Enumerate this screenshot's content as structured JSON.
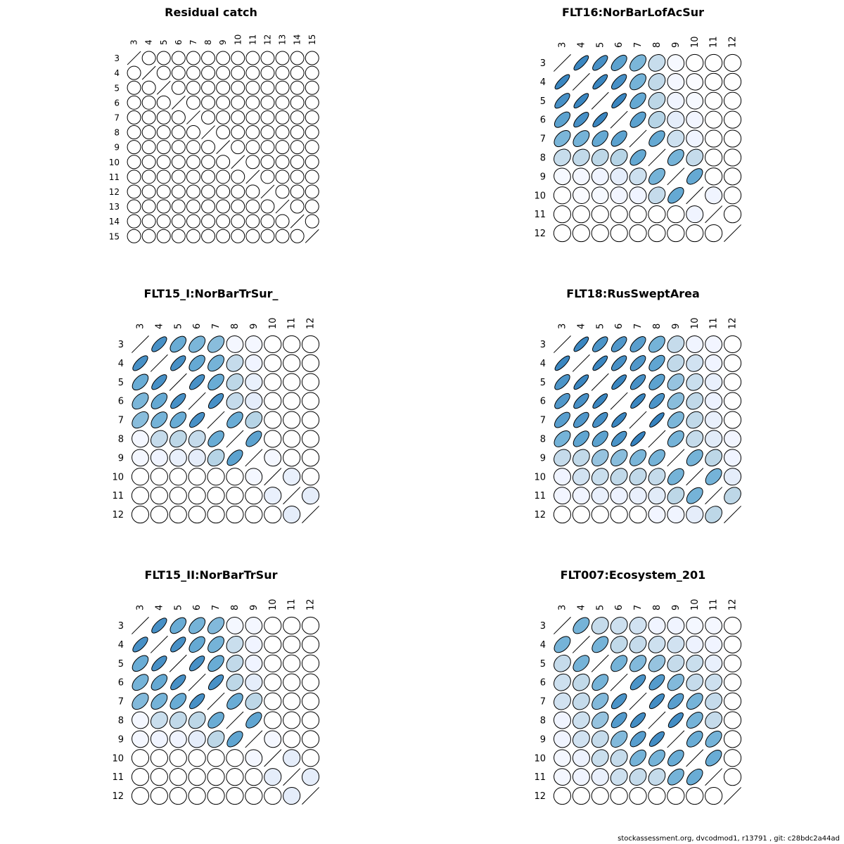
{
  "footer": "stockassessment.org, dvcodmod1, r13791 , git: c28bdc2a44ad",
  "chart_data": [
    {
      "type": "heatmap",
      "title": "Residual catch",
      "ages": [
        3,
        4,
        5,
        6,
        7,
        8,
        9,
        10,
        11,
        12,
        13,
        14,
        15
      ],
      "matrix": [
        [
          1,
          0,
          0,
          0,
          0,
          0,
          0,
          0,
          0,
          0,
          0,
          0,
          0
        ],
        [
          0,
          1,
          0,
          0,
          0,
          0,
          0,
          0,
          0,
          0,
          0,
          0,
          0
        ],
        [
          0,
          0,
          1,
          0,
          0,
          0,
          0,
          0,
          0,
          0,
          0,
          0,
          0
        ],
        [
          0,
          0,
          0,
          1,
          0,
          0,
          0,
          0,
          0,
          0,
          0,
          0,
          0
        ],
        [
          0,
          0,
          0,
          0,
          1,
          0,
          0,
          0,
          0,
          0,
          0,
          0,
          0
        ],
        [
          0,
          0,
          0,
          0,
          0,
          1,
          0,
          0,
          0,
          0,
          0,
          0,
          0
        ],
        [
          0,
          0,
          0,
          0,
          0,
          0,
          1,
          0,
          0,
          0,
          0,
          0,
          0
        ],
        [
          0,
          0,
          0,
          0,
          0,
          0,
          0,
          1,
          0,
          0,
          0,
          0,
          0
        ],
        [
          0,
          0,
          0,
          0,
          0,
          0,
          0,
          0,
          1,
          0,
          0,
          0,
          0
        ],
        [
          0,
          0,
          0,
          0,
          0,
          0,
          0,
          0,
          0,
          1,
          0,
          0,
          0
        ],
        [
          0,
          0,
          0,
          0,
          0,
          0,
          0,
          0,
          0,
          0,
          1,
          0,
          0
        ],
        [
          0,
          0,
          0,
          0,
          0,
          0,
          0,
          0,
          0,
          0,
          0,
          1,
          0
        ],
        [
          0,
          0,
          0,
          0,
          0,
          0,
          0,
          0,
          0,
          0,
          0,
          0,
          1
        ]
      ]
    },
    {
      "type": "heatmap",
      "title": "FLT16:NorBarLofAcSur",
      "ages": [
        3,
        4,
        5,
        6,
        7,
        8,
        9,
        10,
        11,
        12
      ],
      "matrix": [
        [
          1,
          0.88,
          0.82,
          0.72,
          0.6,
          0.35,
          0.08,
          0,
          0,
          0
        ],
        [
          0.88,
          1,
          0.88,
          0.82,
          0.62,
          0.38,
          0.1,
          0.05,
          0,
          0
        ],
        [
          0.82,
          0.88,
          1,
          0.88,
          0.68,
          0.4,
          0.14,
          0.08,
          0,
          0
        ],
        [
          0.72,
          0.82,
          0.88,
          1,
          0.72,
          0.42,
          0.2,
          0.12,
          0,
          0
        ],
        [
          0.6,
          0.62,
          0.68,
          0.72,
          1,
          0.68,
          0.32,
          0.14,
          0,
          0
        ],
        [
          0.35,
          0.38,
          0.4,
          0.42,
          0.68,
          1,
          0.62,
          0.36,
          0,
          0
        ],
        [
          0.08,
          0.1,
          0.14,
          0.2,
          0.32,
          0.62,
          1,
          0.68,
          0,
          0
        ],
        [
          0,
          0.05,
          0.08,
          0.12,
          0.14,
          0.36,
          0.68,
          1,
          0.14,
          0
        ],
        [
          0,
          0,
          0,
          0,
          0,
          0,
          0,
          0.14,
          1,
          0
        ],
        [
          0,
          0,
          0,
          0,
          0,
          0,
          0,
          0,
          0,
          1
        ]
      ]
    },
    {
      "type": "heatmap",
      "title": "FLT15_I:NorBarTrSur_",
      "ages": [
        3,
        4,
        5,
        6,
        7,
        8,
        9,
        10,
        11,
        12
      ],
      "matrix": [
        [
          1,
          0.82,
          0.66,
          0.6,
          0.56,
          0.1,
          0.1,
          0,
          0,
          0
        ],
        [
          0.82,
          1,
          0.82,
          0.68,
          0.62,
          0.36,
          0.14,
          0,
          0,
          0
        ],
        [
          0.66,
          0.82,
          1,
          0.82,
          0.66,
          0.4,
          0.18,
          0,
          0,
          0
        ],
        [
          0.6,
          0.68,
          0.82,
          1,
          0.82,
          0.36,
          0.2,
          0,
          0,
          0
        ],
        [
          0.56,
          0.62,
          0.66,
          0.82,
          1,
          0.66,
          0.42,
          0,
          0,
          0
        ],
        [
          0.1,
          0.36,
          0.4,
          0.36,
          0.66,
          1,
          0.72,
          0,
          0,
          0
        ],
        [
          0.1,
          0.14,
          0.18,
          0.2,
          0.42,
          0.72,
          1,
          0.1,
          0,
          0
        ],
        [
          0,
          0,
          0,
          0,
          0,
          0,
          0.1,
          1,
          0.18,
          0
        ],
        [
          0,
          0,
          0,
          0,
          0,
          0,
          0,
          0.18,
          1,
          0.2
        ],
        [
          0,
          0,
          0,
          0,
          0,
          0,
          0,
          0,
          0.2,
          1
        ]
      ]
    },
    {
      "type": "heatmap",
      "title": "FLT18:RusSweptArea",
      "ages": [
        3,
        4,
        5,
        6,
        7,
        8,
        9,
        10,
        11,
        12
      ],
      "matrix": [
        [
          1,
          0.88,
          0.8,
          0.78,
          0.74,
          0.62,
          0.36,
          0.14,
          0.12,
          0
        ],
        [
          0.88,
          1,
          0.88,
          0.82,
          0.78,
          0.7,
          0.38,
          0.3,
          0.14,
          0
        ],
        [
          0.8,
          0.88,
          1,
          0.88,
          0.82,
          0.72,
          0.52,
          0.34,
          0.18,
          0
        ],
        [
          0.78,
          0.82,
          0.88,
          1,
          0.88,
          0.8,
          0.56,
          0.38,
          0.16,
          0
        ],
        [
          0.74,
          0.78,
          0.82,
          0.88,
          1,
          0.9,
          0.6,
          0.38,
          0.18,
          0
        ],
        [
          0.62,
          0.7,
          0.72,
          0.8,
          0.9,
          1,
          0.62,
          0.36,
          0.22,
          0.12
        ],
        [
          0.36,
          0.38,
          0.52,
          0.56,
          0.6,
          0.62,
          1,
          0.62,
          0.4,
          0.14
        ],
        [
          0.14,
          0.3,
          0.34,
          0.38,
          0.38,
          0.36,
          0.62,
          1,
          0.62,
          0.2
        ],
        [
          0.12,
          0.14,
          0.18,
          0.16,
          0.18,
          0.22,
          0.4,
          0.62,
          1,
          0.4
        ],
        [
          0,
          0,
          0,
          0,
          0,
          0.12,
          0.14,
          0.2,
          0.4,
          1
        ]
      ]
    },
    {
      "type": "heatmap",
      "title": "FLT15_II:NorBarTrSur",
      "ages": [
        3,
        4,
        5,
        6,
        7,
        8,
        9,
        10,
        11,
        12
      ],
      "matrix": [
        [
          1,
          0.82,
          0.66,
          0.62,
          0.58,
          0.1,
          0.1,
          0,
          0,
          0
        ],
        [
          0.82,
          1,
          0.82,
          0.68,
          0.62,
          0.34,
          0.14,
          0,
          0,
          0
        ],
        [
          0.66,
          0.82,
          1,
          0.82,
          0.66,
          0.38,
          0.14,
          0,
          0,
          0
        ],
        [
          0.62,
          0.68,
          0.82,
          1,
          0.82,
          0.4,
          0.2,
          0,
          0,
          0
        ],
        [
          0.58,
          0.62,
          0.66,
          0.82,
          1,
          0.66,
          0.4,
          0,
          0,
          0
        ],
        [
          0.1,
          0.34,
          0.38,
          0.4,
          0.66,
          1,
          0.7,
          0,
          0,
          0
        ],
        [
          0.1,
          0.14,
          0.14,
          0.2,
          0.4,
          0.7,
          1,
          0.1,
          0,
          0
        ],
        [
          0,
          0,
          0,
          0,
          0,
          0,
          0.1,
          1,
          0.2,
          0
        ],
        [
          0,
          0,
          0,
          0,
          0,
          0,
          0,
          0.2,
          1,
          0.2
        ],
        [
          0,
          0,
          0,
          0,
          0,
          0,
          0,
          0,
          0.2,
          1
        ]
      ]
    },
    {
      "type": "heatmap",
      "title": "FLT007:Ecosystem_201",
      "ages": [
        3,
        4,
        5,
        6,
        7,
        8,
        9,
        10,
        11,
        12
      ],
      "matrix": [
        [
          1,
          0.62,
          0.36,
          0.32,
          0.3,
          0.14,
          0.14,
          0.1,
          0.1,
          0
        ],
        [
          0.62,
          1,
          0.62,
          0.38,
          0.36,
          0.32,
          0.3,
          0.16,
          0.14,
          0
        ],
        [
          0.36,
          0.62,
          1,
          0.62,
          0.58,
          0.52,
          0.36,
          0.34,
          0.18,
          0
        ],
        [
          0.32,
          0.38,
          0.62,
          1,
          0.8,
          0.76,
          0.58,
          0.36,
          0.32,
          0
        ],
        [
          0.3,
          0.36,
          0.58,
          0.8,
          1,
          0.84,
          0.74,
          0.62,
          0.36,
          0
        ],
        [
          0.14,
          0.32,
          0.52,
          0.76,
          0.84,
          1,
          0.84,
          0.62,
          0.36,
          0
        ],
        [
          0.14,
          0.3,
          0.36,
          0.58,
          0.74,
          0.84,
          1,
          0.66,
          0.62,
          0
        ],
        [
          0.1,
          0.16,
          0.34,
          0.36,
          0.62,
          0.62,
          0.66,
          1,
          0.66,
          0
        ],
        [
          0.1,
          0.14,
          0.18,
          0.32,
          0.36,
          0.36,
          0.62,
          0.66,
          1,
          0
        ],
        [
          0,
          0,
          0,
          0,
          0,
          0,
          0,
          0,
          0,
          1
        ]
      ]
    }
  ]
}
